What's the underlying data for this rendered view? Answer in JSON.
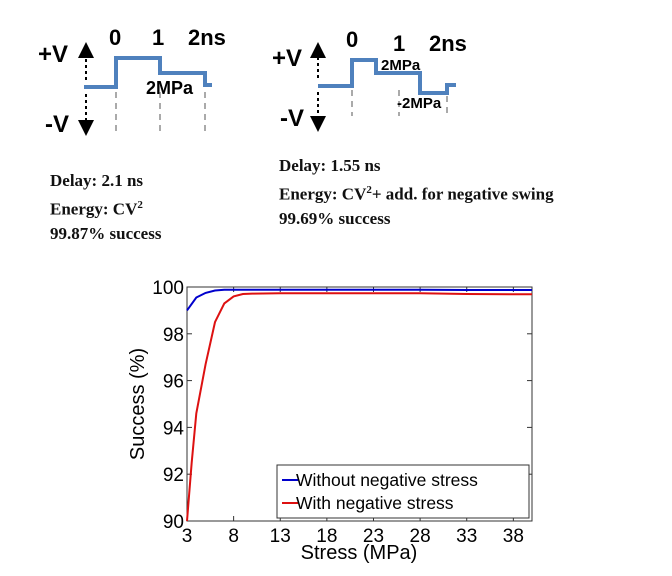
{
  "waveform_left": {
    "plus_v": "+V",
    "minus_v": "-V",
    "time_labels": [
      "0",
      "1",
      "2ns"
    ],
    "stress_label": "2MPa"
  },
  "waveform_right": {
    "plus_v": "+V",
    "minus_v": "-V",
    "time_labels": [
      "0",
      "1",
      "2ns"
    ],
    "stress_label_pos": "2MPa",
    "stress_label_neg": "-2MPa"
  },
  "notes_left": {
    "delay": "Delay: 2.1 ns",
    "energy_prefix": "Energy: CV",
    "energy_sup": "2",
    "success": "99.87% success"
  },
  "notes_right": {
    "delay": "Delay: 1.55 ns",
    "energy_prefix": "Energy: CV",
    "energy_sup": "2",
    "energy_suffix": "+ add. for negative swing",
    "success": "99.69% success"
  },
  "colors": {
    "waveform": "#4f81bd",
    "series_without": "#0000cc",
    "series_with": "#dd1111"
  },
  "chart_data": {
    "type": "line",
    "xlabel": "Stress (MPa)",
    "ylabel": "Success (%)",
    "xlim": [
      3,
      40
    ],
    "ylim": [
      90,
      100
    ],
    "x_ticks": [
      3,
      8,
      13,
      18,
      23,
      28,
      33,
      38
    ],
    "y_ticks": [
      90,
      92,
      94,
      96,
      98,
      100
    ],
    "grid": false,
    "legend_position": "bottom-right",
    "series": [
      {
        "name": "Without negative stress",
        "x": [
          3,
          4,
          5,
          6,
          7,
          8,
          10,
          13,
          18,
          23,
          28,
          33,
          38,
          40
        ],
        "y": [
          99.0,
          99.55,
          99.75,
          99.85,
          99.88,
          99.88,
          99.88,
          99.88,
          99.88,
          99.88,
          99.88,
          99.87,
          99.87,
          99.87
        ]
      },
      {
        "name": "With negative stress",
        "x": [
          3,
          3.5,
          4,
          5,
          6,
          7,
          8,
          9,
          10,
          13,
          18,
          23,
          28,
          33,
          38,
          40
        ],
        "y": [
          90.0,
          92.5,
          94.6,
          96.7,
          98.5,
          99.3,
          99.6,
          99.7,
          99.72,
          99.73,
          99.73,
          99.73,
          99.73,
          99.7,
          99.69,
          99.69
        ]
      }
    ]
  }
}
